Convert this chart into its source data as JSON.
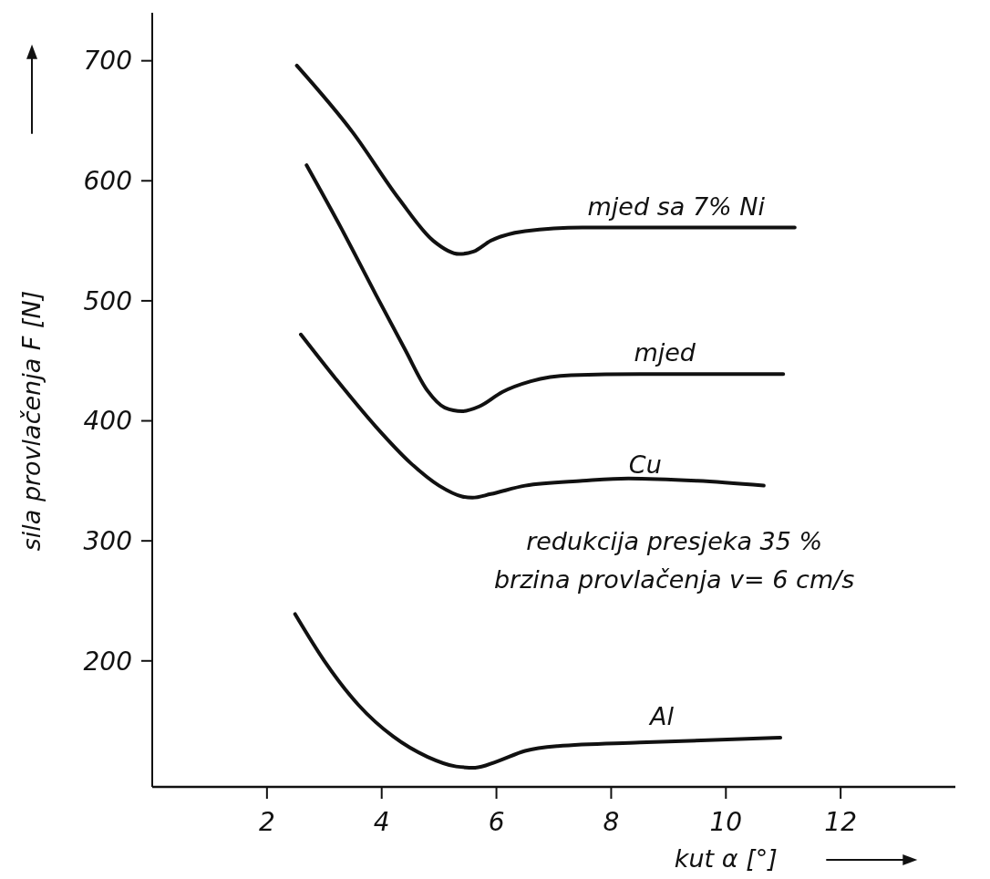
{
  "chart_data": {
    "type": "line",
    "xlabel": "kut α [°]",
    "ylabel": "sila provlačenja F [N]",
    "xlim": [
      0,
      14
    ],
    "ylim": [
      95,
      740
    ],
    "xticks": [
      2,
      4,
      6,
      8,
      10,
      12
    ],
    "yticks": [
      200,
      300,
      400,
      500,
      600,
      700
    ],
    "grid": false,
    "marker": "none",
    "line_style": "solid",
    "series": [
      {
        "name": "mjed sa 7% Ni",
        "color": "#111111",
        "x": [
          2.52,
          3.5,
          4.3,
          4.9,
          5.35,
          5.6,
          5.9,
          6.5,
          7.5,
          9,
          11.2
        ],
        "values": [
          696,
          640,
          585,
          550,
          539,
          541,
          550,
          558,
          561,
          561,
          561
        ]
      },
      {
        "name": "mjed",
        "color": "#111111",
        "x": [
          2.69,
          3.3,
          3.9,
          4.4,
          4.8,
          5.1,
          5.4,
          5.7,
          6.1,
          6.6,
          7.3,
          8.5,
          11.0
        ],
        "values": [
          613,
          560,
          505,
          460,
          425,
          411,
          408,
          412,
          424,
          433,
          438,
          439,
          439
        ]
      },
      {
        "name": "Cu",
        "color": "#111111",
        "x": [
          2.59,
          3.2,
          3.9,
          4.5,
          5.0,
          5.4,
          5.58,
          5.9,
          6.5,
          7.5,
          8.3,
          9.5,
          10.66
        ],
        "values": [
          472,
          435,
          395,
          365,
          346,
          337,
          336,
          339,
          346,
          350,
          352,
          350,
          346
        ]
      },
      {
        "name": "Al",
        "color": "#111111",
        "x": [
          2.49,
          3.0,
          3.6,
          4.2,
          4.8,
          5.3,
          5.63,
          6.0,
          6.5,
          7.07,
          8.5,
          10.95
        ],
        "values": [
          239,
          200,
          163,
          137,
          120,
          112,
          111,
          116,
          125,
          129,
          132,
          136
        ]
      }
    ],
    "annotations": [
      "redukcija presjeka 35 %",
      "brzina provlačenja v= 6 cm/s"
    ]
  }
}
